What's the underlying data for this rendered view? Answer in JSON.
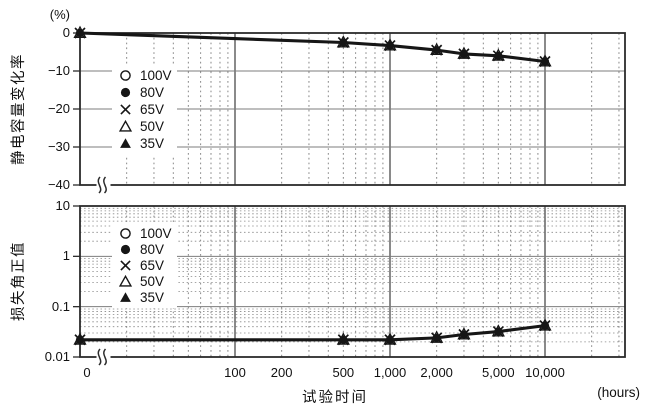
{
  "chart_data": {
    "type": "line",
    "title": "",
    "x_axis": {
      "label": "试验时间",
      "unit": "(hours)",
      "scale": "log with axis break after 0",
      "xlim_log": [
        10,
        33000
      ],
      "ticks": [
        {
          "v": 0,
          "label": "0"
        },
        {
          "v": 100,
          "label": "100"
        },
        {
          "v": 200,
          "label": "200"
        },
        {
          "v": 500,
          "label": "500"
        },
        {
          "v": 1000,
          "label": "1,000"
        },
        {
          "v": 2000,
          "label": "2,000"
        },
        {
          "v": 5000,
          "label": "5,000"
        },
        {
          "v": 10000,
          "label": "10,000"
        }
      ]
    },
    "panels": [
      {
        "ylabel": "静电容量变化率",
        "y_unit": "(%)",
        "y_scale": "linear",
        "ylim": [
          -40,
          0
        ],
        "y_ticks": [
          {
            "v": 0,
            "label": "0"
          },
          {
            "v": -10,
            "label": "−10"
          },
          {
            "v": -20,
            "label": "−20"
          },
          {
            "v": -30,
            "label": "−30"
          },
          {
            "v": -40,
            "label": "−40"
          }
        ],
        "x": [
          0,
          500,
          1000,
          2000,
          3000,
          5000,
          10000
        ],
        "series": [
          {
            "name": "100V",
            "marker": "open-circle",
            "values": [
              0,
              -2.5,
              -3.3,
              -4.5,
              -5.5,
              -6,
              -7.5
            ]
          },
          {
            "name": "80V",
            "marker": "filled-circle",
            "values": [
              0,
              -2.5,
              -3.3,
              -4.5,
              -5.5,
              -6,
              -7.5
            ]
          },
          {
            "name": "65V",
            "marker": "x-cross",
            "values": [
              0,
              -2.5,
              -3.3,
              -4.5,
              -5.5,
              -6,
              -7.5
            ]
          },
          {
            "name": "50V",
            "marker": "open-triangle",
            "values": [
              0,
              -2.5,
              -3.3,
              -4.5,
              -5.5,
              -6,
              -7.5
            ]
          },
          {
            "name": "35V",
            "marker": "filled-triangle",
            "values": [
              0,
              -2.5,
              -3.3,
              -4.5,
              -5.5,
              -6,
              -7.5
            ]
          }
        ],
        "note": "curves for all five test voltages coincide (markers overlap into one dark blob)"
      },
      {
        "ylabel": "损失角正值",
        "y_unit": "",
        "y_scale": "log",
        "ylim": [
          0.01,
          10
        ],
        "y_ticks": [
          {
            "v": 10,
            "label": "10"
          },
          {
            "v": 1,
            "label": "1"
          },
          {
            "v": 0.1,
            "label": "0.1"
          },
          {
            "v": 0.01,
            "label": "0.01"
          }
        ],
        "x": [
          0,
          500,
          1000,
          2000,
          3000,
          5000,
          10000
        ],
        "series": [
          {
            "name": "100V",
            "marker": "open-circle",
            "values": [
              0.022,
              0.022,
              0.022,
              0.024,
              0.028,
              0.032,
              0.042
            ]
          },
          {
            "name": "80V",
            "marker": "filled-circle",
            "values": [
              0.022,
              0.022,
              0.022,
              0.024,
              0.028,
              0.032,
              0.042
            ]
          },
          {
            "name": "65V",
            "marker": "x-cross",
            "values": [
              0.022,
              0.022,
              0.022,
              0.024,
              0.028,
              0.032,
              0.042
            ]
          },
          {
            "name": "50V",
            "marker": "open-triangle",
            "values": [
              0.022,
              0.022,
              0.022,
              0.024,
              0.028,
              0.032,
              0.042
            ]
          },
          {
            "name": "35V",
            "marker": "filled-triangle",
            "values": [
              0.022,
              0.022,
              0.022,
              0.024,
              0.028,
              0.032,
              0.042
            ]
          }
        ],
        "note": "curves for all five test voltages coincide (markers overlap into one dark blob)"
      }
    ],
    "legend": {
      "position": "inside upper-left of each panel",
      "items": [
        {
          "marker": "open-circle",
          "label": "100V"
        },
        {
          "marker": "filled-circle",
          "label": "80V"
        },
        {
          "marker": "x-cross",
          "label": "65V"
        },
        {
          "marker": "open-triangle",
          "label": "50V"
        },
        {
          "marker": "filled-triangle",
          "label": "35V"
        }
      ]
    },
    "grid": {
      "x_major": [
        100,
        1000,
        10000
      ],
      "x_minor": "dotted verticals at 2–9 of each decade (20–30,000 h)",
      "panel1_y_major": [
        -10,
        -20,
        -30
      ],
      "panel2_y_major": [
        1,
        0.1
      ],
      "panel2_y_minor": "dotted horizontals at 2–9 of each log decade"
    },
    "colors": {
      "line": "#161616",
      "frame": "#2b2b2b",
      "x_major_grid": "#3c3c3c",
      "y_major_grid": "#7d7d7d",
      "minor_grid": "#888888",
      "text": "#111111",
      "background": "#ffffff"
    }
  }
}
